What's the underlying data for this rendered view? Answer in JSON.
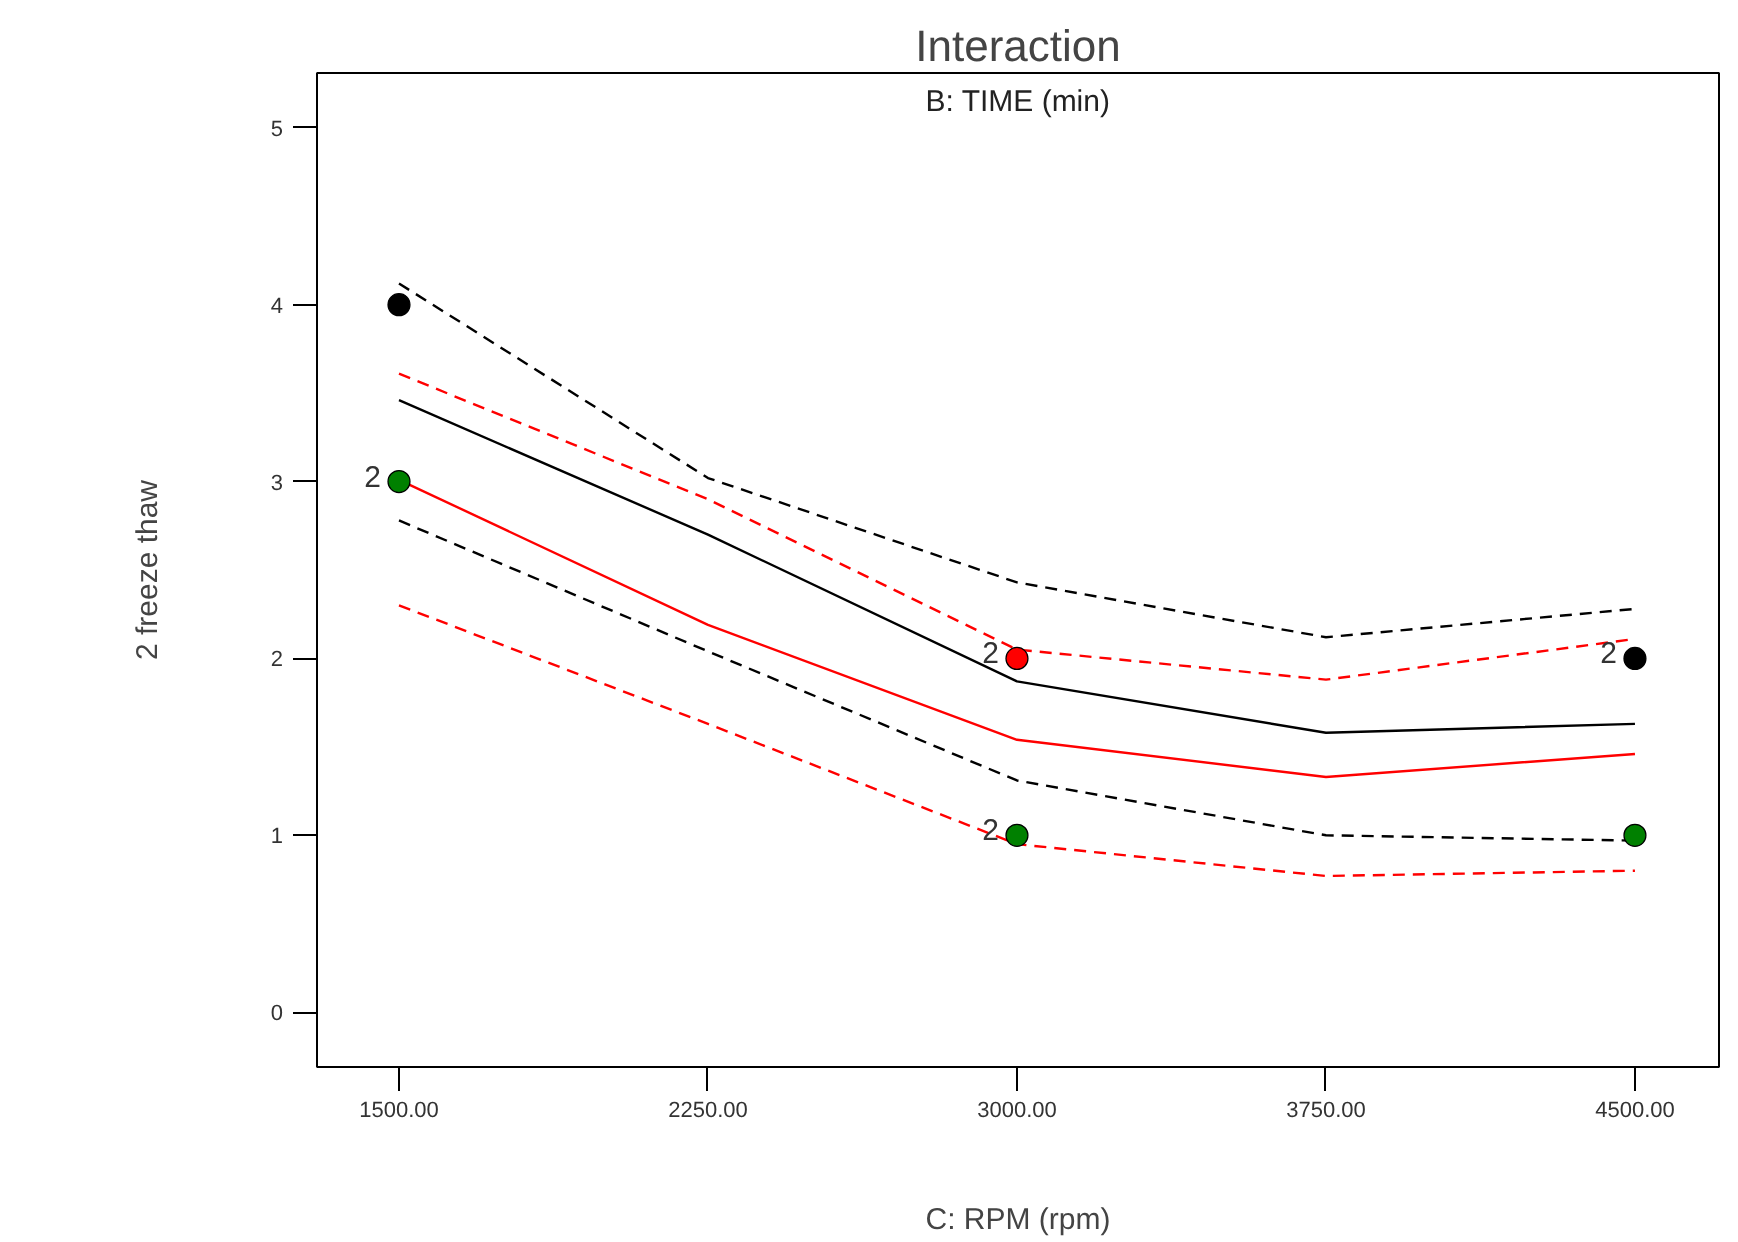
{
  "chart_data": {
    "type": "line",
    "title": "Interaction",
    "subtitle": "B: TIME (min)",
    "xlabel": "C: RPM (rpm)",
    "ylabel": "2 freeze thaw",
    "xlim": [
      1301,
      4704
    ],
    "ylim": [
      -0.31,
      5.31
    ],
    "xticks": [
      {
        "value": 1500,
        "label": "1500.00"
      },
      {
        "value": 2250,
        "label": "2250.00"
      },
      {
        "value": 3000,
        "label": "3000.00"
      },
      {
        "value": 3750,
        "label": "3750.00"
      },
      {
        "value": 4500,
        "label": "4500.00"
      }
    ],
    "yticks": [
      0,
      1,
      2,
      3,
      4,
      5
    ],
    "grid": false,
    "series": [
      {
        "color": "#000000",
        "line_style": "dashed",
        "x": [
          1500,
          2250,
          3000,
          3750,
          4500
        ],
        "values": [
          4.12,
          3.02,
          2.43,
          2.12,
          2.28
        ]
      },
      {
        "color": "#ff0000",
        "line_style": "dashed",
        "x": [
          1500,
          2250,
          3000,
          3750,
          4500
        ],
        "values": [
          3.61,
          2.9,
          2.05,
          1.88,
          2.11
        ]
      },
      {
        "color": "#000000",
        "line_style": "solid",
        "x": [
          1500,
          2250,
          3000,
          3750,
          4500
        ],
        "values": [
          3.46,
          2.7,
          1.87,
          1.58,
          1.63
        ]
      },
      {
        "color": "#ff0000",
        "line_style": "solid",
        "x": [
          1500,
          2250,
          3000,
          3750,
          4500
        ],
        "values": [
          3.01,
          2.19,
          1.54,
          1.33,
          1.46
        ]
      },
      {
        "color": "#000000",
        "line_style": "dashed",
        "x": [
          1500,
          2250,
          3000,
          3750,
          4500
        ],
        "values": [
          2.78,
          2.04,
          1.31,
          1.0,
          0.97
        ]
      },
      {
        "color": "#ff0000",
        "line_style": "dashed",
        "x": [
          1500,
          2250,
          3000,
          3750,
          4500
        ],
        "values": [
          2.3,
          1.63,
          0.95,
          0.77,
          0.8
        ]
      },
      {
        "type": "scatter",
        "marker": "circle",
        "x": [
          1500,
          1500,
          3000,
          3000,
          4500,
          4500
        ],
        "values": [
          4,
          3,
          2,
          1,
          2,
          1
        ],
        "colors": [
          "#000000",
          "#008000",
          "#ff0000",
          "#008000",
          "#000000",
          "#008000"
        ]
      }
    ],
    "annotations": [
      {
        "text": "2",
        "x": 1500,
        "y": 3
      },
      {
        "text": "2",
        "x": 3000,
        "y": 2
      },
      {
        "text": "2",
        "x": 3000,
        "y": 1
      },
      {
        "text": "2",
        "x": 4500,
        "y": 2
      }
    ]
  }
}
